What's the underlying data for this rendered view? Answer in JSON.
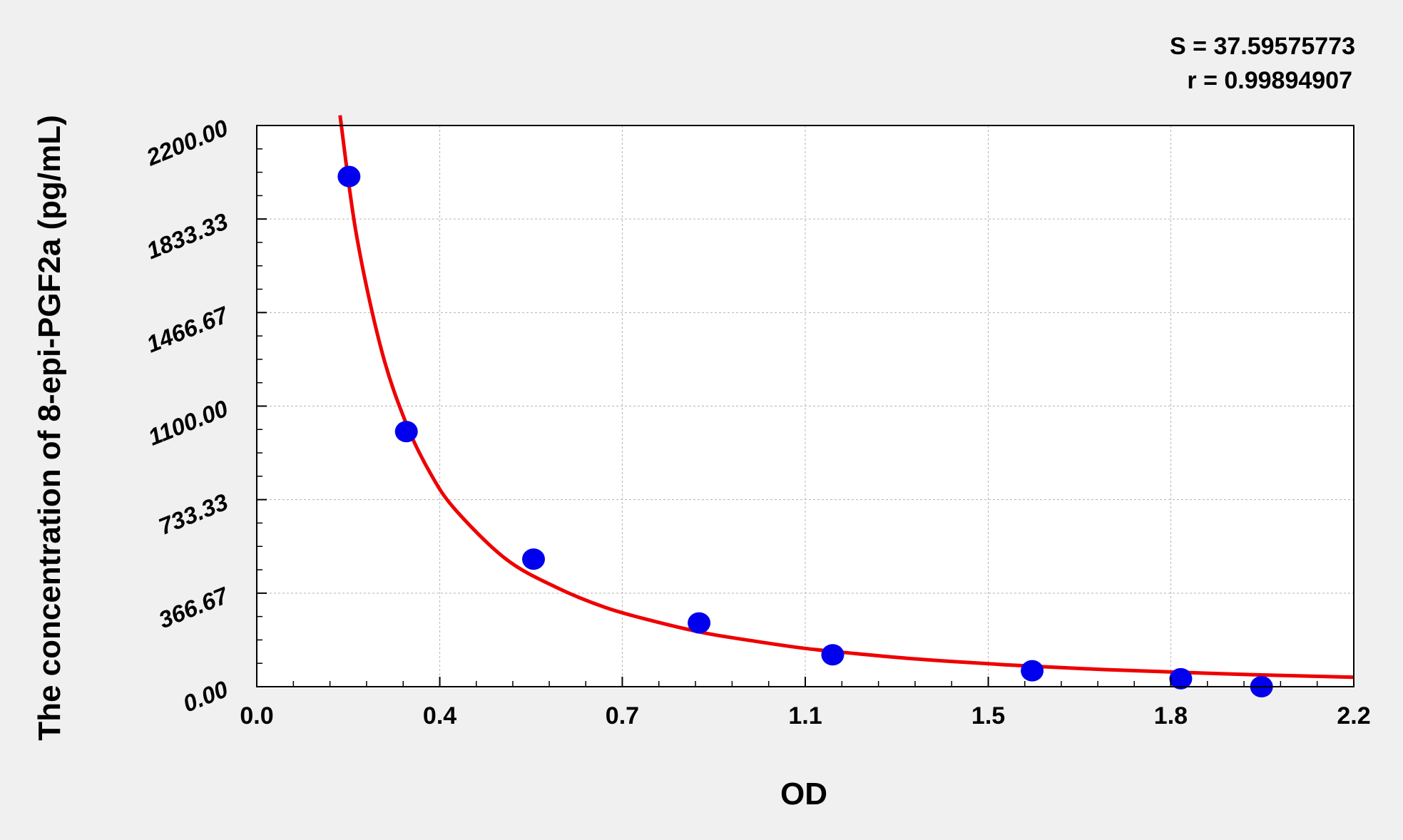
{
  "chart_data": {
    "type": "scatter",
    "title": "",
    "xlabel": "OD",
    "ylabel": "The concentration of 8-epi-PGF2a (pg/mL)",
    "xlim": [
      0.0,
      2.2
    ],
    "ylim": [
      0.0,
      2200.0
    ],
    "x_ticks": [
      "0.0",
      "0.4",
      "0.7",
      "1.1",
      "1.5",
      "1.8",
      "2.2"
    ],
    "x_tick_values": [
      0.0,
      0.367,
      0.733,
      1.1,
      1.467,
      1.833,
      2.2
    ],
    "y_ticks": [
      "0.00",
      "366.67",
      "733.33",
      "1100.00",
      "1466.67",
      "1833.33",
      "2200.00"
    ],
    "y_tick_values": [
      0.0,
      366.67,
      733.33,
      1100.0,
      1466.67,
      1833.33,
      2200.0
    ],
    "grid": true,
    "annotations": [
      "S = 37.59575773",
      "r = 0.99894907"
    ],
    "series": [
      {
        "kind": "points",
        "color": "#0000ee",
        "points": [
          {
            "x": 0.185,
            "y": 2000
          },
          {
            "x": 0.3,
            "y": 1000
          },
          {
            "x": 0.555,
            "y": 500
          },
          {
            "x": 0.887,
            "y": 250
          },
          {
            "x": 1.155,
            "y": 125
          },
          {
            "x": 1.555,
            "y": 62.5
          },
          {
            "x": 1.853,
            "y": 31.25
          },
          {
            "x": 2.015,
            "y": 0
          }
        ]
      },
      {
        "kind": "fit-curve",
        "color": "#ee0000",
        "x_range": [
          0.167,
          2.2
        ],
        "points": [
          {
            "x": 0.167,
            "y": 2240
          },
          {
            "x": 0.2,
            "y": 1770
          },
          {
            "x": 0.25,
            "y": 1320
          },
          {
            "x": 0.3,
            "y": 1030
          },
          {
            "x": 0.35,
            "y": 830
          },
          {
            "x": 0.4,
            "y": 690
          },
          {
            "x": 0.5,
            "y": 500
          },
          {
            "x": 0.6,
            "y": 390
          },
          {
            "x": 0.7,
            "y": 310
          },
          {
            "x": 0.8,
            "y": 255
          },
          {
            "x": 0.9,
            "y": 210
          },
          {
            "x": 1.0,
            "y": 178
          },
          {
            "x": 1.1,
            "y": 150
          },
          {
            "x": 1.2,
            "y": 130
          },
          {
            "x": 1.3,
            "y": 112
          },
          {
            "x": 1.4,
            "y": 98
          },
          {
            "x": 1.5,
            "y": 86
          },
          {
            "x": 1.6,
            "y": 76
          },
          {
            "x": 1.7,
            "y": 67
          },
          {
            "x": 1.8,
            "y": 60
          },
          {
            "x": 1.9,
            "y": 53
          },
          {
            "x": 2.0,
            "y": 47
          },
          {
            "x": 2.1,
            "y": 42
          },
          {
            "x": 2.2,
            "y": 37
          }
        ]
      }
    ]
  }
}
